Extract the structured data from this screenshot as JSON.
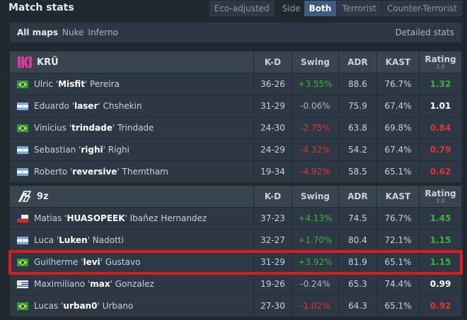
{
  "header": {
    "title": "Match stats",
    "eco": "Eco-adjusted",
    "side_label": "Side",
    "sides": [
      "Both",
      "Terrorist",
      "Counter-Terrorist"
    ],
    "active_side": 0
  },
  "maps": {
    "items": [
      "All maps",
      "Nuke",
      "Inferno"
    ],
    "active": 0,
    "detailed": "Detailed stats"
  },
  "columns": {
    "kd": "K-D",
    "swing": "Swing",
    "adr": "ADR",
    "kast": "KAST",
    "rating": "Rating",
    "rating_version": "3.0"
  },
  "teams": [
    {
      "name": "KRÜ",
      "logo": "kru",
      "players": [
        {
          "flag": "br",
          "first": "Ulric '",
          "nick": "Misfit",
          "last": "' Pereira",
          "kd": "36-26",
          "swing": "+3.55%",
          "adr": "88.6",
          "kast": "76.7%",
          "rating": "1.32"
        },
        {
          "flag": "ar",
          "first": "Eduardo '",
          "nick": "laser",
          "last": "' Chshekin",
          "kd": "31-29",
          "swing": "-0.06%",
          "adr": "75.9",
          "kast": "67.4%",
          "rating": "1.01"
        },
        {
          "flag": "br",
          "first": "Vinícius '",
          "nick": "trindade",
          "last": "' Trindade",
          "kd": "24-30",
          "swing": "-2.75%",
          "adr": "63.8",
          "kast": "69.8%",
          "rating": "0.84"
        },
        {
          "flag": "ar",
          "first": "Sebastian '",
          "nick": "righi",
          "last": "' Righi",
          "kd": "24-29",
          "swing": "-4.32%",
          "adr": "54.2",
          "kast": "67.4%",
          "rating": "0.79"
        },
        {
          "flag": "ar",
          "first": "Roberto '",
          "nick": "reversive",
          "last": "' Themtham",
          "kd": "19-34",
          "swing": "-4.92%",
          "adr": "58.5",
          "kast": "65.1%",
          "rating": "0.62"
        }
      ]
    },
    {
      "name": "9z",
      "logo": "9z",
      "players": [
        {
          "flag": "cl",
          "first": "Matias '",
          "nick": "HUASOPEEK",
          "last": "' Ibañez Hernandez",
          "kd": "37-23",
          "swing": "+4.13%",
          "adr": "74.5",
          "kast": "76.7%",
          "rating": "1.45"
        },
        {
          "flag": "ar",
          "first": "Luca '",
          "nick": "Luken",
          "last": "' Nadotti",
          "kd": "32-27",
          "swing": "+1.70%",
          "adr": "80.4",
          "kast": "72.1%",
          "rating": "1.15"
        },
        {
          "flag": "br",
          "first": "Guilherme '",
          "nick": "levi",
          "last": "' Gustavo",
          "kd": "31-29",
          "swing": "+3.92%",
          "adr": "81.9",
          "kast": "65.1%",
          "rating": "1.15",
          "highlight": true
        },
        {
          "flag": "uy",
          "first": "Maximiliano '",
          "nick": "max",
          "last": "' Gonzalez",
          "kd": "19-26",
          "swing": "-0.24%",
          "adr": "65.3",
          "kast": "74.4%",
          "rating": "0.99"
        },
        {
          "flag": "br",
          "first": "Lucas '",
          "nick": "urban0",
          "last": "' Urbano",
          "kd": "27-30",
          "swing": "-1.02%",
          "adr": "64.3",
          "kast": "65.1%",
          "rating": "0.92"
        }
      ]
    }
  ]
}
